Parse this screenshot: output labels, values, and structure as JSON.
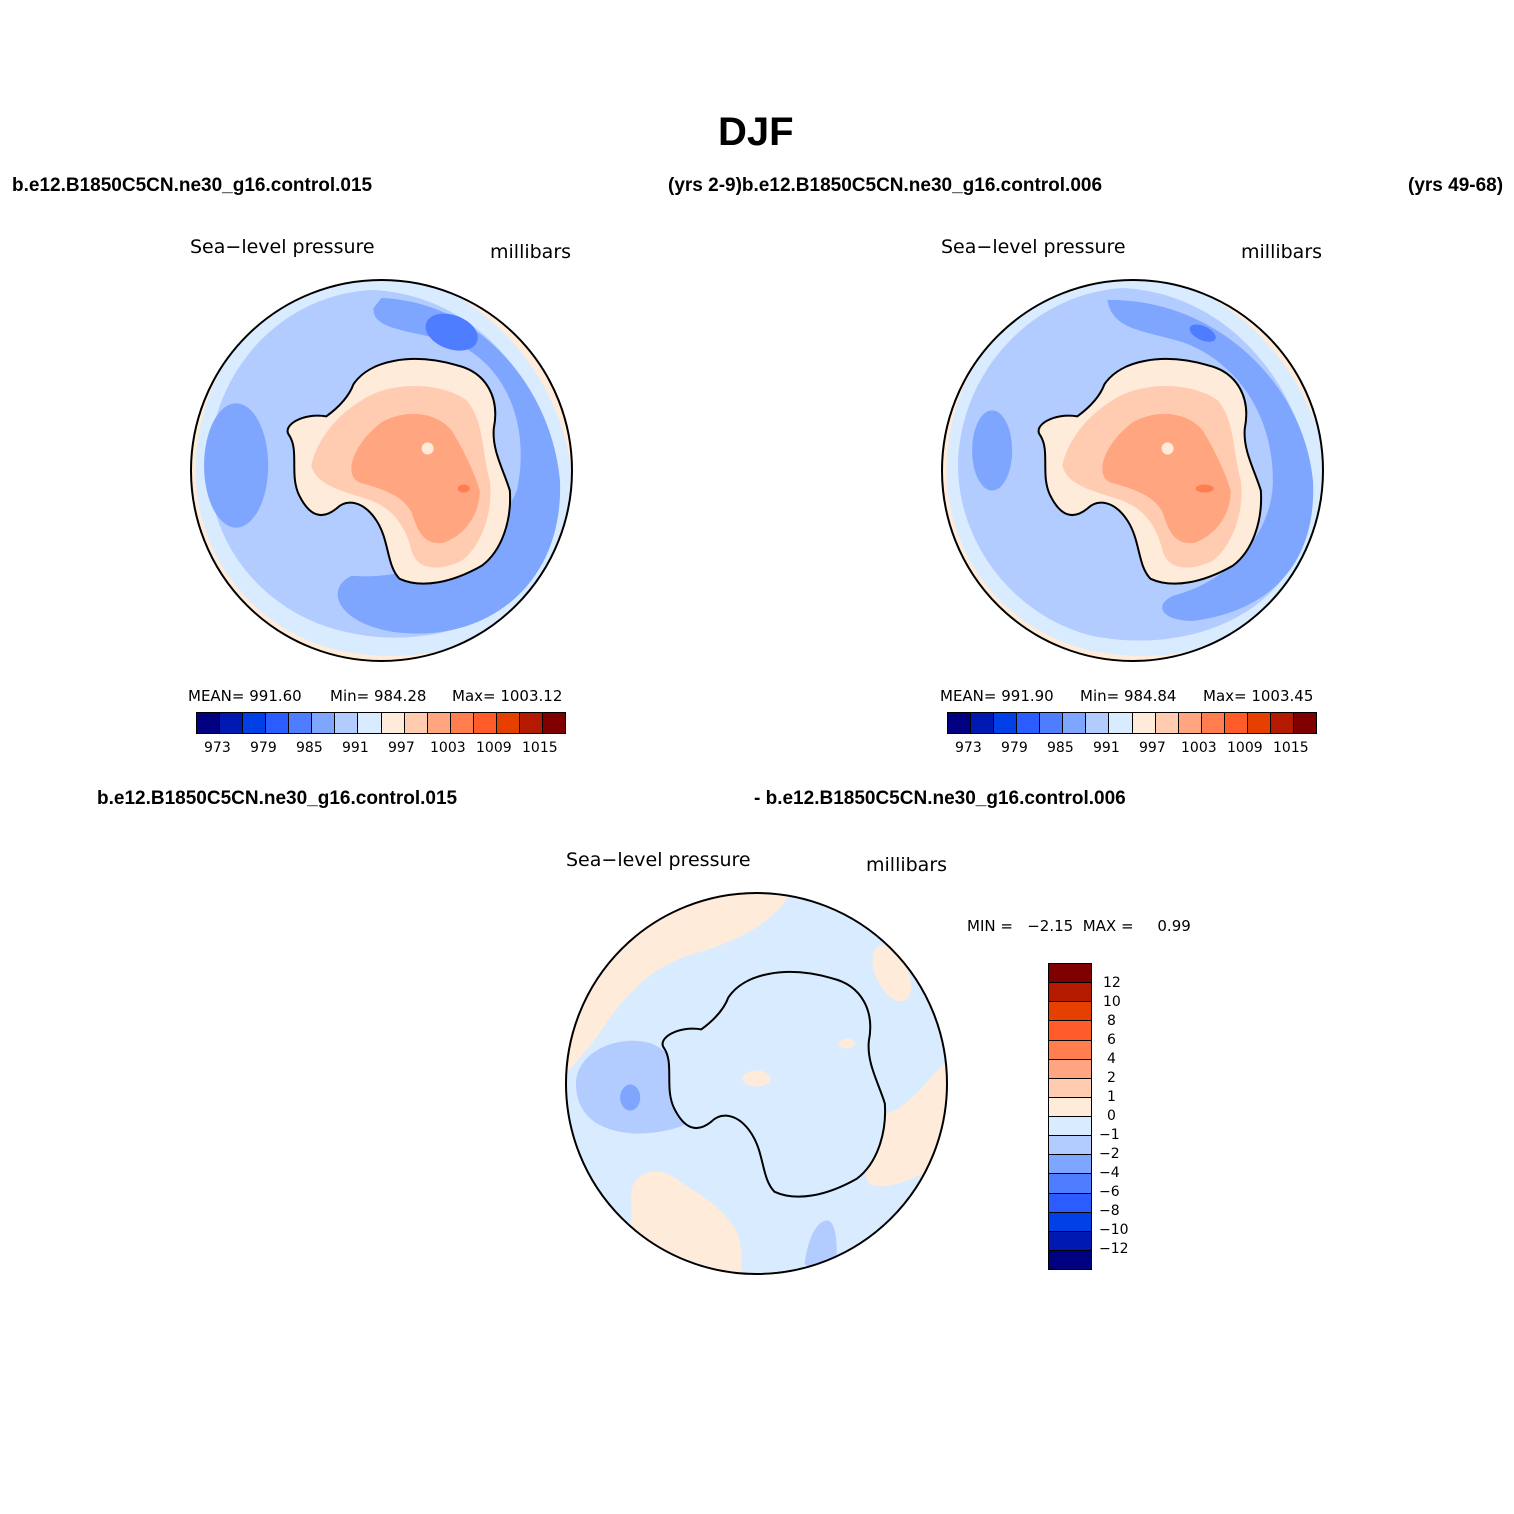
{
  "figure": {
    "title": "DJF",
    "top_left_header": "b.e12.B1850C5CN.ne30_g16.control.015",
    "top_mid_header": "(yrs 2-9)b.e12.B1850C5CN.ne30_g16.control.006",
    "top_right_header": "(yrs 49-68)",
    "bottom_left_header": "b.e12.B1850C5CN.ne30_g16.control.015",
    "bottom_mid_header": "- b.e12.B1850C5CN.ne30_g16.control.006"
  },
  "panel1": {
    "variable": "Sea−level pressure",
    "units": "millibars",
    "mean_text": "MEAN= 991.60",
    "min_text": "Min= 984.28",
    "max_text": "Max= 1003.12",
    "colorbar_ticks": [
      "973",
      "979",
      "985",
      "991",
      "997",
      "1003",
      "1009",
      "1015"
    ]
  },
  "panel2": {
    "variable": "Sea−level pressure",
    "units": "millibars",
    "mean_text": "MEAN= 991.90",
    "min_text": "Min= 984.84",
    "max_text": "Max= 1003.45",
    "colorbar_ticks": [
      "973",
      "979",
      "985",
      "991",
      "997",
      "1003",
      "1009",
      "1015"
    ]
  },
  "panel3": {
    "variable": "Sea−level pressure",
    "units": "millibars",
    "minmax_text": "MIN =   −2.15  MAX =     0.99",
    "colorbar_labels": [
      "12",
      "10",
      "8",
      "6",
      "4",
      "2",
      "1",
      "0",
      "−1",
      "−2",
      "−4",
      "−6",
      "−8",
      "−10",
      "−12"
    ]
  },
  "colors": {
    "abs_scale": [
      "#000080",
      "#0019b3",
      "#0040e6",
      "#2a5cff",
      "#4f7dff",
      "#7fa6ff",
      "#b2ccff",
      "#d9ebff",
      "#ffebd9",
      "#ffccb2",
      "#ffa680",
      "#ff7d4f",
      "#ff5c2a",
      "#e64000",
      "#b31a00",
      "#800000"
    ],
    "diff_scale": [
      "#800000",
      "#b31a00",
      "#e64000",
      "#ff5c2a",
      "#ff7d4f",
      "#ffa680",
      "#ffccb2",
      "#ffebd9",
      "#d9ebff",
      "#b2ccff",
      "#7fa6ff",
      "#4f7dff",
      "#2a5cff",
      "#0040e6",
      "#0019b3",
      "#000080"
    ]
  }
}
